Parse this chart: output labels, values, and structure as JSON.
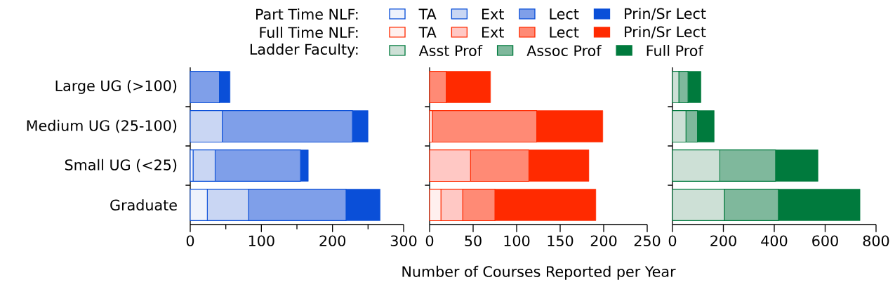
{
  "chart_data": [
    {
      "type": "bar",
      "orientation": "horizontal",
      "stacked": true,
      "legend": "top",
      "legend_title": "Part Time NLF:",
      "categories": [
        "Large UG (>100)",
        "Medium UG (25-100)",
        "Small UG (<25)",
        "Graduate"
      ],
      "series": [
        {
          "name": "TA",
          "color": "#eef2fc",
          "values": [
            0,
            0,
            4,
            24
          ]
        },
        {
          "name": "Ext",
          "color": "#c9d6f3",
          "values": [
            0,
            45,
            31,
            58
          ]
        },
        {
          "name": "Lect",
          "color": "#7f9fe9",
          "values": [
            41,
            183,
            120,
            137
          ]
        },
        {
          "name": "Prin/Sr Lect",
          "color": "#0a4fd8",
          "values": [
            15,
            22,
            11,
            48
          ]
        }
      ],
      "xlim": [
        0,
        300
      ],
      "xticks": [
        0,
        {
          "value": 50,
          "label": null
        },
        100,
        {
          "value": 150,
          "label": null
        },
        200,
        {
          "value": 250,
          "label": null
        },
        300
      ]
    },
    {
      "type": "bar",
      "orientation": "horizontal",
      "stacked": true,
      "legend": "top",
      "legend_title": "Full Time NLF:",
      "tick_labels": "x",
      "xlabel": "Number of Courses Reported per Year",
      "categories": [
        null,
        null,
        null,
        null
      ],
      "series": [
        {
          "name": "TA",
          "color": "#fff0ee",
          "values": [
            0,
            3,
            0,
            13
          ]
        },
        {
          "name": "Ext",
          "color": "#ffc8c4",
          "values": [
            0,
            0,
            47,
            25
          ]
        },
        {
          "name": "Lect",
          "color": "#ff8a75",
          "values": [
            19,
            120,
            67,
            37
          ]
        },
        {
          "name": "Prin/Sr Lect",
          "color": "#ff2a00",
          "values": [
            51,
            76,
            69,
            116
          ]
        }
      ],
      "xlim": [
        0,
        250
      ],
      "xticks": [
        0,
        50,
        100,
        150,
        200,
        250
      ]
    },
    {
      "type": "bar",
      "orientation": "horizontal",
      "stacked": true,
      "legend": "top",
      "legend_title": "Ladder Faculty:",
      "tick_labels": "x",
      "categories": [
        null,
        null,
        null,
        null
      ],
      "series": [
        {
          "name": "Asst Prof",
          "color": "#cde0d6",
          "values": [
            25,
            53,
            186,
            204
          ]
        },
        {
          "name": "Assoc Prof",
          "color": "#7fb89c",
          "values": [
            36,
            45,
            219,
            212
          ]
        },
        {
          "name": "Full Prof",
          "color": "#007a3d",
          "values": [
            51,
            66,
            167,
            321
          ]
        }
      ],
      "xlim": [
        0,
        800
      ],
      "xticks": [
        0,
        200,
        400,
        600,
        800
      ]
    }
  ]
}
